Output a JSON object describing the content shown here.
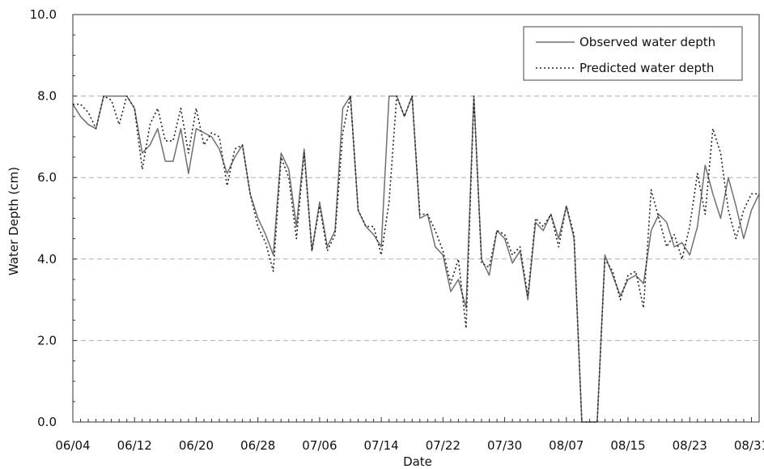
{
  "chart_data": {
    "type": "line",
    "xlabel": "Date",
    "ylabel": "Water Depth (cm)",
    "ylim": [
      0,
      10
    ],
    "xlim": [
      "06/04",
      "09/02"
    ],
    "y_ticks": [
      "0.0",
      "2.0",
      "4.0",
      "6.0",
      "8.0",
      "10.0"
    ],
    "x_ticks": [
      "06/04",
      "06/12",
      "06/20",
      "06/28",
      "07/06",
      "07/14",
      "07/22",
      "07/30",
      "08/07",
      "08/15",
      "08/23",
      "08/31"
    ],
    "x_tick_values": [
      0,
      8,
      16,
      24,
      32,
      40,
      48,
      56,
      64,
      72,
      80,
      88
    ],
    "grid": "horizontal-dashed",
    "legend_position": "top-right",
    "series": [
      {
        "name": "Observed water depth",
        "style": "solid",
        "color": "#707070",
        "x": [
          0,
          1,
          2,
          3,
          4,
          5,
          6,
          7,
          8,
          9,
          10,
          11,
          12,
          13,
          14,
          15,
          16,
          17,
          18,
          19,
          20,
          21,
          22,
          23,
          24,
          25,
          26,
          27,
          28,
          29,
          30,
          31,
          32,
          33,
          34,
          35,
          36,
          37,
          38,
          39,
          40,
          41,
          42,
          43,
          44,
          45,
          46,
          47,
          48,
          49,
          50,
          51,
          52,
          53,
          54,
          55,
          56,
          57,
          58,
          59,
          60,
          61,
          62,
          63,
          64,
          65,
          66,
          67,
          68,
          69,
          70,
          71,
          72,
          73,
          74,
          75,
          76,
          77,
          78,
          79,
          80,
          81,
          82,
          83,
          84,
          85,
          86,
          87,
          88,
          89
        ],
        "values": [
          7.8,
          7.5,
          7.3,
          7.2,
          8.0,
          8.0,
          8.0,
          8.0,
          7.7,
          6.6,
          6.8,
          7.2,
          6.4,
          6.4,
          7.2,
          6.1,
          7.2,
          7.1,
          7.0,
          6.7,
          6.1,
          6.5,
          6.8,
          5.6,
          5.0,
          4.6,
          4.1,
          6.6,
          6.2,
          4.8,
          6.7,
          4.2,
          5.4,
          4.3,
          4.7,
          7.7,
          8.0,
          5.2,
          4.8,
          4.6,
          4.3,
          8.0,
          8.0,
          7.5,
          8.0,
          5.0,
          5.1,
          4.3,
          4.1,
          3.2,
          3.5,
          2.8,
          8.0,
          4.0,
          3.6,
          4.7,
          4.5,
          3.9,
          4.2,
          3.0,
          4.9,
          4.7,
          5.1,
          4.5,
          5.3,
          4.5,
          0.0,
          0.0,
          0.0,
          4.1,
          3.6,
          3.1,
          3.5,
          3.6,
          3.4,
          4.7,
          5.1,
          4.9,
          4.3,
          4.4,
          4.1,
          4.8,
          6.3,
          5.6,
          5.0,
          6.0,
          5.3,
          4.5,
          5.2,
          5.6
        ]
      },
      {
        "name": "Predicted water depth",
        "style": "dotted",
        "color": "#222222",
        "x": [
          0,
          1,
          2,
          3,
          4,
          5,
          6,
          7,
          8,
          9,
          10,
          11,
          12,
          13,
          14,
          15,
          16,
          17,
          18,
          19,
          20,
          21,
          22,
          23,
          24,
          25,
          26,
          27,
          28,
          29,
          30,
          31,
          32,
          33,
          34,
          35,
          36,
          37,
          38,
          39,
          40,
          41,
          42,
          43,
          44,
          45,
          46,
          47,
          48,
          49,
          50,
          51,
          52,
          53,
          54,
          55,
          56,
          57,
          58,
          59,
          60,
          61,
          62,
          63,
          64,
          65,
          66,
          67,
          68,
          69,
          70,
          71,
          72,
          73,
          74,
          75,
          76,
          77,
          78,
          79,
          80,
          81,
          82,
          83,
          84,
          85,
          86,
          87,
          88,
          89
        ],
        "values": [
          7.8,
          7.8,
          7.6,
          7.2,
          8.0,
          7.9,
          7.3,
          8.0,
          7.7,
          6.2,
          7.3,
          7.7,
          6.9,
          6.9,
          7.7,
          6.6,
          7.7,
          6.8,
          7.1,
          7.0,
          5.8,
          6.7,
          6.8,
          5.6,
          4.8,
          4.4,
          3.7,
          6.5,
          6.0,
          4.5,
          6.6,
          4.2,
          5.3,
          4.2,
          4.6,
          7.1,
          8.0,
          5.2,
          4.8,
          4.8,
          4.1,
          5.4,
          8.0,
          7.5,
          8.0,
          5.1,
          5.1,
          4.7,
          4.2,
          3.4,
          4.0,
          2.3,
          8.0,
          3.9,
          3.8,
          4.7,
          4.6,
          4.1,
          4.3,
          3.1,
          5.0,
          4.8,
          5.1,
          4.3,
          5.3,
          4.6,
          0.0,
          0.0,
          0.0,
          4.0,
          3.7,
          3.0,
          3.6,
          3.7,
          2.8,
          5.7,
          5.0,
          4.3,
          4.6,
          4.0,
          4.8,
          6.1,
          5.1,
          7.2,
          6.6,
          5.2,
          4.5,
          5.2,
          5.6,
          5.6
        ]
      }
    ]
  }
}
